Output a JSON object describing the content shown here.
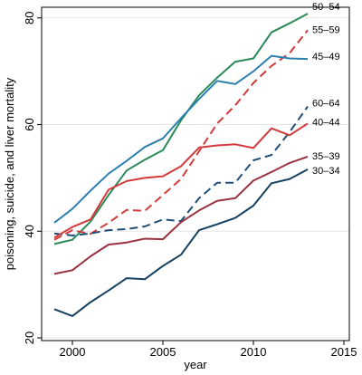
{
  "chart_data": {
    "type": "line",
    "title": "",
    "xlabel": "year",
    "ylabel": "poisoning, suicide, and liver mortality",
    "xlim": [
      1998.3,
      2015.3
    ],
    "ylim": [
      19.5,
      82
    ],
    "xticks": [
      2000,
      2005,
      2010,
      2015
    ],
    "xtick_labels": [
      "2000",
      "2005",
      "2010",
      "2015"
    ],
    "yticks": [
      20,
      40,
      60,
      80
    ],
    "ytick_labels": [
      "20",
      "40",
      "60",
      "80"
    ],
    "grid": "horizontal",
    "legend": "direct labels at right end of lines",
    "x": [
      1999,
      2000,
      2001,
      2002,
      2003,
      2004,
      2005,
      2006,
      2007,
      2008,
      2009,
      2010,
      2011,
      2012,
      2013
    ],
    "series": [
      {
        "name": "50–54",
        "color": "#2a8a5a",
        "dash": "solid",
        "values": [
          37.6,
          38.4,
          41.8,
          46.8,
          51.4,
          53.4,
          55.2,
          60.8,
          65.5,
          68.8,
          71.8,
          72.4,
          77.3,
          79.0,
          80.8
        ]
      },
      {
        "name": "55–59",
        "color": "#d23a3a",
        "dash": "dashed",
        "values": [
          38.4,
          40.2,
          39.5,
          41.6,
          44.0,
          43.8,
          46.8,
          49.8,
          55.0,
          60.2,
          63.6,
          67.8,
          71.0,
          73.4,
          77.7
        ]
      },
      {
        "name": "45–49",
        "color": "#2c80b0",
        "dash": "solid",
        "values": [
          41.6,
          44.2,
          47.6,
          50.8,
          53.2,
          55.8,
          57.4,
          61.2,
          64.8,
          68.2,
          67.6,
          70.0,
          72.9,
          72.4,
          72.3
        ]
      },
      {
        "name": "60–64",
        "color": "#1f4f78",
        "dash": "dashed",
        "values": [
          39.6,
          39.2,
          39.6,
          40.2,
          40.4,
          40.9,
          42.2,
          41.9,
          46.2,
          49.1,
          49.1,
          53.3,
          54.3,
          58.6,
          63.4
        ]
      },
      {
        "name": "40–44",
        "color": "#d23a3a",
        "dash": "solid",
        "values": [
          38.8,
          40.8,
          42.2,
          47.8,
          49.4,
          50.0,
          50.3,
          52.2,
          55.7,
          56.1,
          56.3,
          55.6,
          59.3,
          58.0,
          60.2
        ]
      },
      {
        "name": "35–39",
        "color": "#9b3040",
        "dash": "solid",
        "values": [
          32.0,
          32.7,
          35.3,
          37.5,
          37.9,
          38.6,
          38.5,
          41.7,
          43.9,
          45.7,
          46.2,
          49.5,
          51.1,
          52.8,
          54.0
        ]
      },
      {
        "name": "30–34",
        "color": "#15405f",
        "dash": "solid",
        "values": [
          25.4,
          24.1,
          26.7,
          28.9,
          31.2,
          31.0,
          33.5,
          35.6,
          40.2,
          41.3,
          42.5,
          44.8,
          49.0,
          49.8,
          51.6
        ]
      }
    ]
  }
}
